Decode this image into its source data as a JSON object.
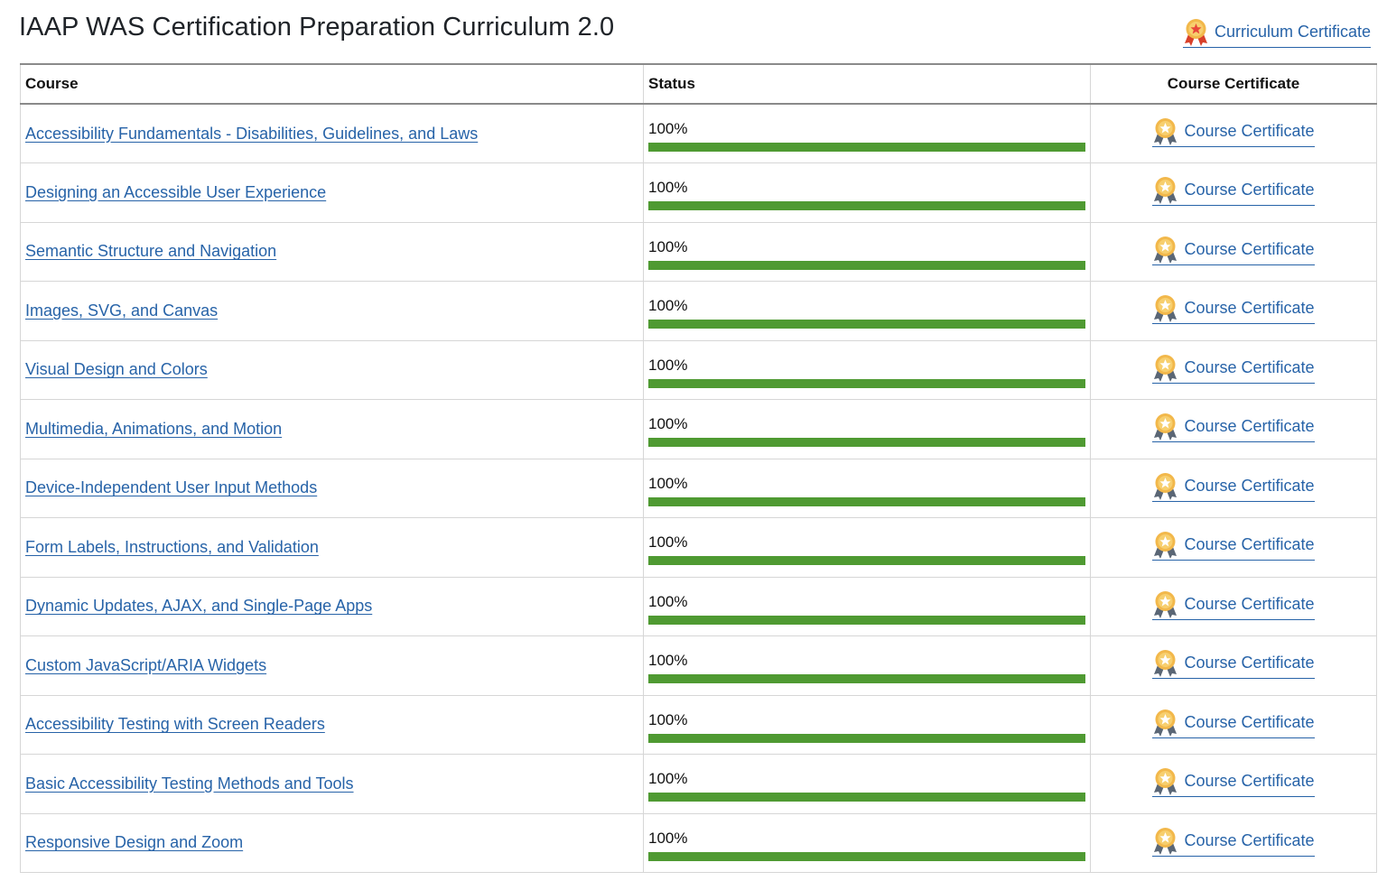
{
  "title": "IAAP WAS Certification Preparation Curriculum 2.0",
  "curriculum_certificate": {
    "label": "Curriculum Certificate",
    "icon": "award-medal-icon"
  },
  "table": {
    "headers": {
      "course": "Course",
      "status": "Status",
      "certificate": "Course Certificate"
    },
    "colors": {
      "link": "#2763a8",
      "progress": "#4f9a32",
      "medal_gold": "#f2b84b",
      "medal_ribbon": "#5a6675"
    },
    "rows": [
      {
        "course": "Accessibility Fundamentals - Disabilities, Guidelines, and Laws",
        "status": "100%",
        "progress": 1.0,
        "certificate": "Course Certificate"
      },
      {
        "course": "Designing an Accessible User Experience",
        "status": "100%",
        "progress": 1.0,
        "certificate": "Course Certificate"
      },
      {
        "course": "Semantic Structure and Navigation",
        "status": "100%",
        "progress": 1.0,
        "certificate": "Course Certificate"
      },
      {
        "course": "Images, SVG, and Canvas",
        "status": "100%",
        "progress": 1.0,
        "certificate": "Course Certificate"
      },
      {
        "course": "Visual Design and Colors",
        "status": "100%",
        "progress": 1.0,
        "certificate": "Course Certificate"
      },
      {
        "course": "Multimedia, Animations, and Motion",
        "status": "100%",
        "progress": 1.0,
        "certificate": "Course Certificate"
      },
      {
        "course": "Device-Independent User Input Methods",
        "status": "100%",
        "progress": 1.0,
        "certificate": "Course Certificate"
      },
      {
        "course": "Form Labels, Instructions, and Validation",
        "status": "100%",
        "progress": 1.0,
        "certificate": "Course Certificate"
      },
      {
        "course": "Dynamic Updates, AJAX, and Single-Page Apps",
        "status": "100%",
        "progress": 1.0,
        "certificate": "Course Certificate"
      },
      {
        "course": "Custom JavaScript/ARIA Widgets",
        "status": "100%",
        "progress": 1.0,
        "certificate": "Course Certificate"
      },
      {
        "course": "Accessibility Testing with Screen Readers",
        "status": "100%",
        "progress": 1.0,
        "certificate": "Course Certificate"
      },
      {
        "course": "Basic Accessibility Testing Methods and Tools",
        "status": "100%",
        "progress": 1.0,
        "certificate": "Course Certificate"
      },
      {
        "course": "Responsive Design and Zoom",
        "status": "100%",
        "progress": 1.0,
        "certificate": "Course Certificate"
      }
    ]
  }
}
